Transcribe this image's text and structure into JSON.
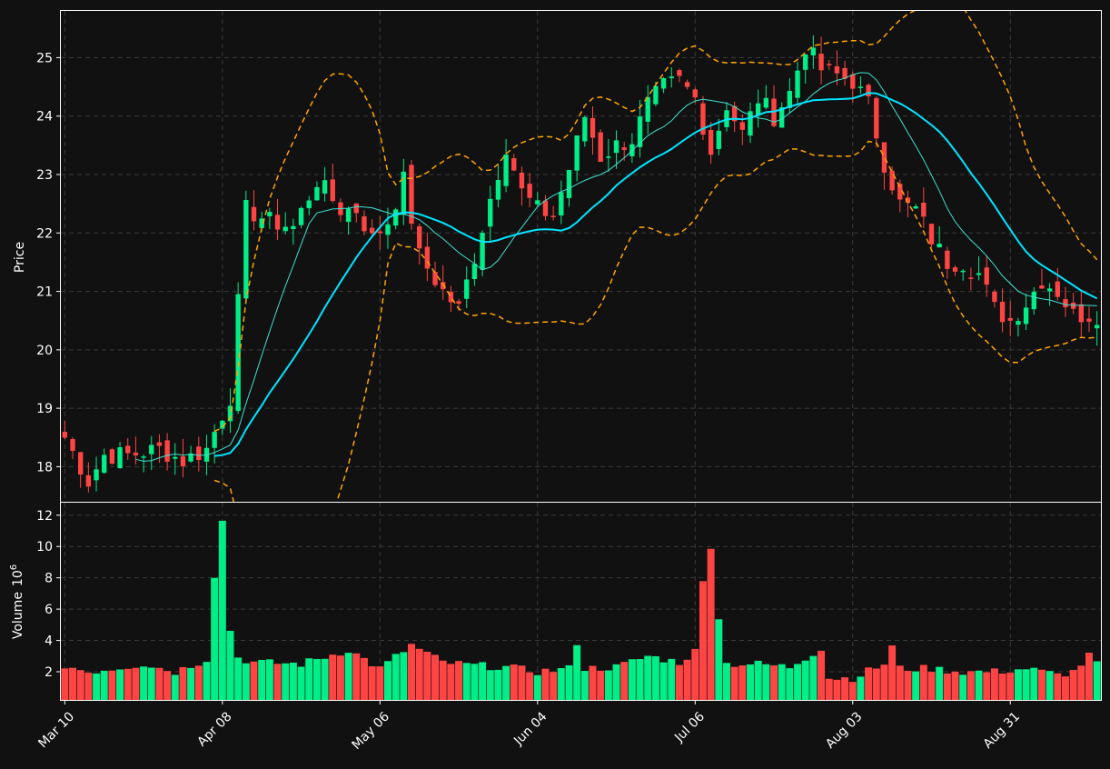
{
  "colors": {
    "background": "#111111",
    "axes_frame": "#ffffff",
    "grid": "#3a3a3a",
    "text": "#ffffff",
    "up": "#00ee88",
    "down": "#ff4444",
    "ma_fast": "#40e0d0",
    "ma_slow": "#00e5ff",
    "bands": "#ffa500"
  },
  "chart_data": {
    "type": "candlestick",
    "price_panel": {
      "ylabel": "Price",
      "ylim": [
        17.4,
        25.8
      ],
      "yticks": [
        "18",
        "19",
        "20",
        "21",
        "22",
        "23",
        "24",
        "25"
      ],
      "ytick_values": [
        18,
        19,
        20,
        21,
        22,
        23,
        24,
        25
      ]
    },
    "volume_panel": {
      "ylabel": "Volume",
      "ylabel_exponent": "10",
      "ylabel_exponent_power": "6",
      "ylim": [
        0.2,
        12.8
      ],
      "yticks": [
        "2",
        "4",
        "6",
        "8",
        "10",
        "12"
      ],
      "ytick_values": [
        2,
        4,
        6,
        8,
        10,
        12
      ]
    },
    "x_axis": {
      "n_bars": 132,
      "tick_labels": [
        "Mar 10",
        "Apr 08",
        "May 06",
        "Jun 04",
        "Jul 06",
        "Aug 03",
        "Aug 31"
      ],
      "tick_indices": [
        0,
        20,
        40,
        60,
        80,
        100,
        120
      ],
      "grid": true
    },
    "price_waypoints": [
      [
        0,
        18.5
      ],
      [
        3,
        17.75
      ],
      [
        5,
        18.2
      ],
      [
        8,
        18.2
      ],
      [
        12,
        18.3
      ],
      [
        15,
        18.1
      ],
      [
        18,
        18.3
      ],
      [
        21,
        19.2
      ],
      [
        23,
        22.4
      ],
      [
        26,
        22.2
      ],
      [
        29,
        22.1
      ],
      [
        32,
        22.9
      ],
      [
        35,
        22.4
      ],
      [
        37,
        22.4
      ],
      [
        39,
        21.9
      ],
      [
        41,
        22.2
      ],
      [
        43,
        22.9
      ],
      [
        45,
        21.6
      ],
      [
        48,
        21.0
      ],
      [
        50,
        20.7
      ],
      [
        52,
        21.6
      ],
      [
        54,
        22.6
      ],
      [
        56,
        23.5
      ],
      [
        58,
        22.7
      ],
      [
        60,
        22.4
      ],
      [
        62,
        22.3
      ],
      [
        64,
        23.1
      ],
      [
        66,
        24.0
      ],
      [
        68,
        23.3
      ],
      [
        70,
        23.5
      ],
      [
        72,
        23.6
      ],
      [
        74,
        24.2
      ],
      [
        76,
        24.5
      ],
      [
        78,
        24.6
      ],
      [
        80,
        24.3
      ],
      [
        82,
        23.4
      ],
      [
        84,
        24.2
      ],
      [
        86,
        23.7
      ],
      [
        88,
        24.3
      ],
      [
        90,
        24.0
      ],
      [
        92,
        24.4
      ],
      [
        94,
        25.2
      ],
      [
        96,
        24.8
      ],
      [
        98,
        24.7
      ],
      [
        100,
        24.6
      ],
      [
        102,
        24.2
      ],
      [
        104,
        23.2
      ],
      [
        106,
        22.5
      ],
      [
        108,
        22.4
      ],
      [
        110,
        21.9
      ],
      [
        112,
        21.5
      ],
      [
        114,
        21.5
      ],
      [
        116,
        21.3
      ],
      [
        118,
        20.7
      ],
      [
        120,
        20.5
      ],
      [
        122,
        20.8
      ],
      [
        124,
        21.2
      ],
      [
        126,
        21.0
      ],
      [
        128,
        20.6
      ],
      [
        131,
        20.6
      ]
    ],
    "volume_waypoints": [
      [
        0,
        2.4
      ],
      [
        3,
        2.0
      ],
      [
        6,
        2.2
      ],
      [
        10,
        2.5
      ],
      [
        14,
        2.0
      ],
      [
        18,
        2.8
      ],
      [
        19,
        8.2
      ],
      [
        20,
        11.6
      ],
      [
        21,
        4.7
      ],
      [
        22,
        2.9
      ],
      [
        24,
        2.6
      ],
      [
        30,
        2.5
      ],
      [
        36,
        3.4
      ],
      [
        40,
        2.2
      ],
      [
        44,
        3.7
      ],
      [
        48,
        2.6
      ],
      [
        52,
        2.4
      ],
      [
        56,
        2.3
      ],
      [
        60,
        2.0
      ],
      [
        64,
        2.2
      ],
      [
        65,
        3.9
      ],
      [
        66,
        2.2
      ],
      [
        70,
        2.3
      ],
      [
        74,
        3.0
      ],
      [
        78,
        2.6
      ],
      [
        80,
        3.3
      ],
      [
        81,
        7.7
      ],
      [
        82,
        10.1
      ],
      [
        83,
        5.5
      ],
      [
        84,
        2.5
      ],
      [
        88,
        2.5
      ],
      [
        92,
        2.3
      ],
      [
        95,
        3.2
      ],
      [
        96,
        3.5
      ],
      [
        97,
        1.6
      ],
      [
        100,
        1.6
      ],
      [
        104,
        2.5
      ],
      [
        105,
        3.6
      ],
      [
        106,
        2.2
      ],
      [
        110,
        2.2
      ],
      [
        114,
        2.0
      ],
      [
        118,
        2.0
      ],
      [
        122,
        2.2
      ],
      [
        126,
        1.8
      ],
      [
        128,
        2.0
      ],
      [
        130,
        3.0
      ],
      [
        131,
        2.6
      ]
    ],
    "overlays": [
      {
        "kind": "moving_average",
        "period": 10,
        "color": "ma_fast"
      },
      {
        "kind": "moving_average",
        "period": 20,
        "color": "ma_slow"
      },
      {
        "kind": "bollinger_bands",
        "period": 20,
        "color": "bands",
        "style": "dashed"
      }
    ]
  }
}
